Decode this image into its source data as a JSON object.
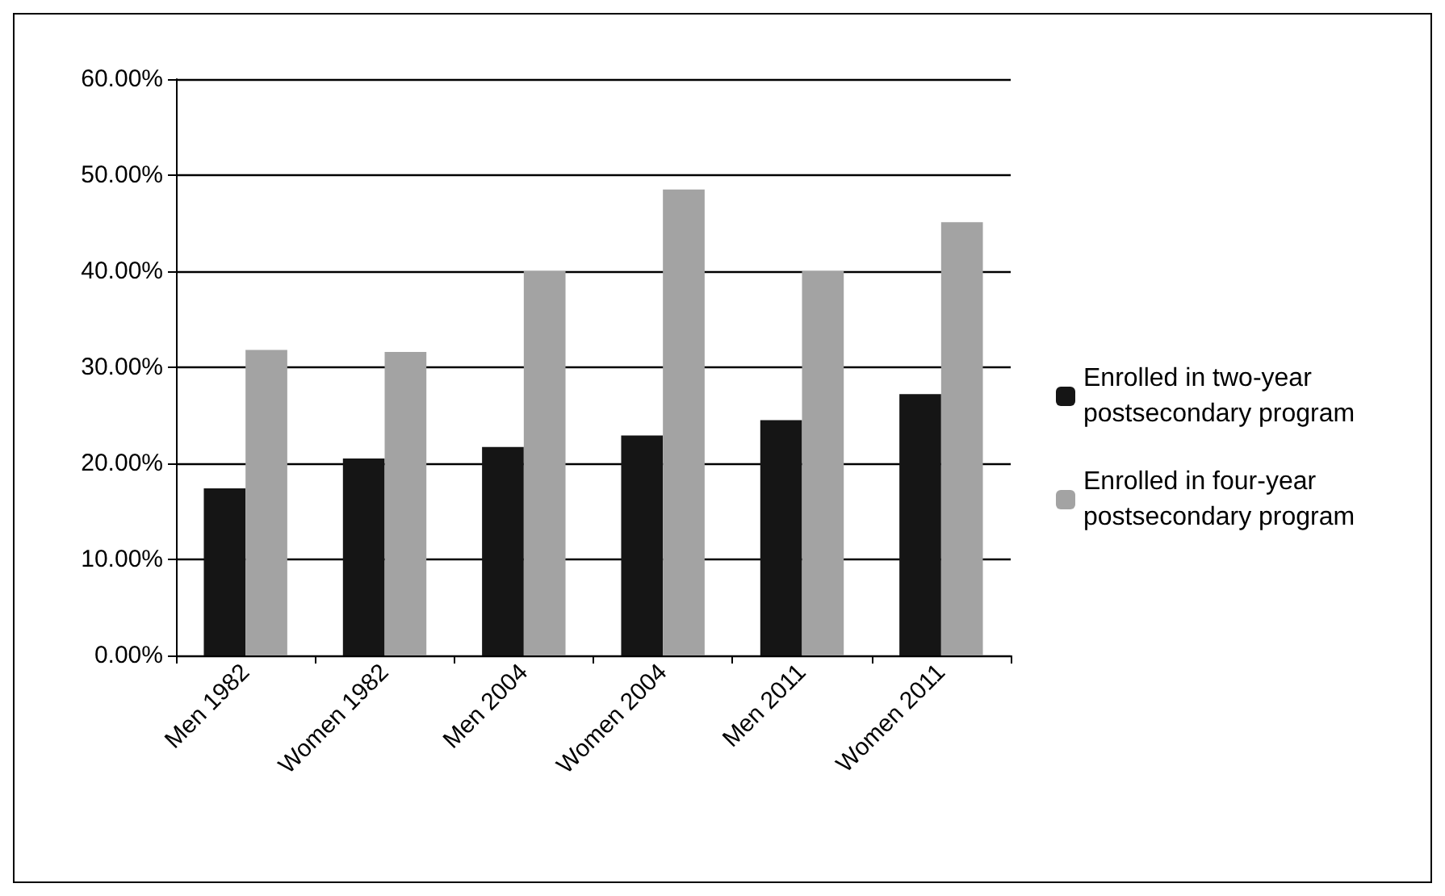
{
  "chart_data": {
    "type": "bar",
    "categories": [
      "Men 1982",
      "Women 1982",
      "Men 2004",
      "Women 2004",
      "Men 2011",
      "Women 2011"
    ],
    "series": [
      {
        "name": "Enrolled in two-year postsecondary program",
        "color": "#151515",
        "values": [
          17.4,
          20.5,
          21.7,
          22.9,
          24.5,
          27.2
        ]
      },
      {
        "name": "Enrolled in four-year postsecondary program",
        "color": "#a3a3a3",
        "values": [
          31.8,
          31.6,
          40,
          48.5,
          40,
          45.1
        ]
      }
    ],
    "ylim": [
      0,
      60
    ],
    "yticks": [
      {
        "value": 0,
        "label": "0.00%"
      },
      {
        "value": 10,
        "label": "10.00%"
      },
      {
        "value": 20,
        "label": "20.00%"
      },
      {
        "value": 30,
        "label": "30.00%"
      },
      {
        "value": 40,
        "label": "40.00%"
      },
      {
        "value": 50,
        "label": "50.00%"
      },
      {
        "value": 60,
        "label": "60.00%"
      }
    ],
    "grid": "y",
    "legend": "right"
  }
}
